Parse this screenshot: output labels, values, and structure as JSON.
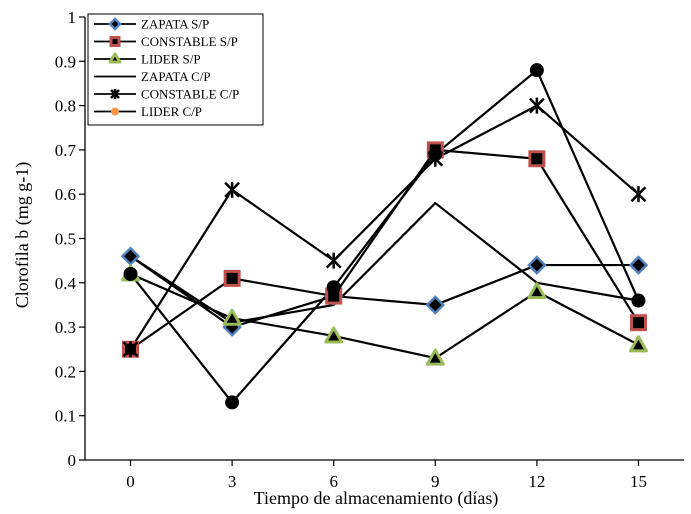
{
  "chart_data": {
    "type": "line",
    "title": "",
    "xlabel": "Tiempo de almacenamiento (días)",
    "ylabel": "Clorofila  b (mg g-1)",
    "x": [
      0,
      3,
      6,
      9,
      12,
      15
    ],
    "x_tick_labels": [
      "0",
      "3",
      "6",
      "9",
      "12",
      "15"
    ],
    "ylim": [
      0,
      1
    ],
    "y_ticks": [
      0,
      0.1,
      0.2,
      0.3,
      0.4,
      0.5,
      0.6,
      0.7,
      0.8,
      0.9,
      1
    ],
    "y_tick_labels": [
      "0",
      "0.1",
      "0.2",
      "0.3",
      "0.4",
      "0.5",
      "0.6",
      "0.7",
      "0.8",
      "0.9",
      "1"
    ],
    "grid": false,
    "legend_position": "top-left",
    "series": [
      {
        "name": "ZAPATA S/P",
        "marker": "diamond",
        "marker_color": "#4f81bd",
        "line_color": "#000000",
        "values": [
          0.46,
          0.3,
          0.37,
          0.35,
          0.44,
          0.44
        ]
      },
      {
        "name": "CONSTABLE S/P",
        "marker": "square",
        "marker_color": "#c0504d",
        "line_color": "#000000",
        "values": [
          0.25,
          0.41,
          0.37,
          0.7,
          0.68,
          0.31
        ]
      },
      {
        "name": "LIDER S/P",
        "marker": "triangle",
        "marker_color": "#9bbb59",
        "line_color": "#000000",
        "values": [
          0.42,
          0.32,
          0.28,
          0.23,
          0.38,
          0.26
        ]
      },
      {
        "name": "ZAPATA C/P",
        "marker": "none",
        "marker_color": "#000000",
        "line_color": "#000000",
        "values": [
          0.46,
          0.31,
          0.35,
          0.58,
          0.4,
          0.36
        ]
      },
      {
        "name": "CONSTABLE C/P",
        "marker": "star",
        "marker_color": "#000000",
        "line_color": "#000000",
        "values": [
          0.25,
          0.61,
          0.45,
          0.68,
          0.8,
          0.6
        ]
      },
      {
        "name": "LIDER C/P",
        "marker": "circle",
        "marker_color": "#000000",
        "legend_marker_color": "#f79646",
        "line_color": "#000000",
        "values": [
          0.42,
          0.13,
          0.39,
          0.69,
          0.88,
          0.36
        ]
      }
    ]
  }
}
